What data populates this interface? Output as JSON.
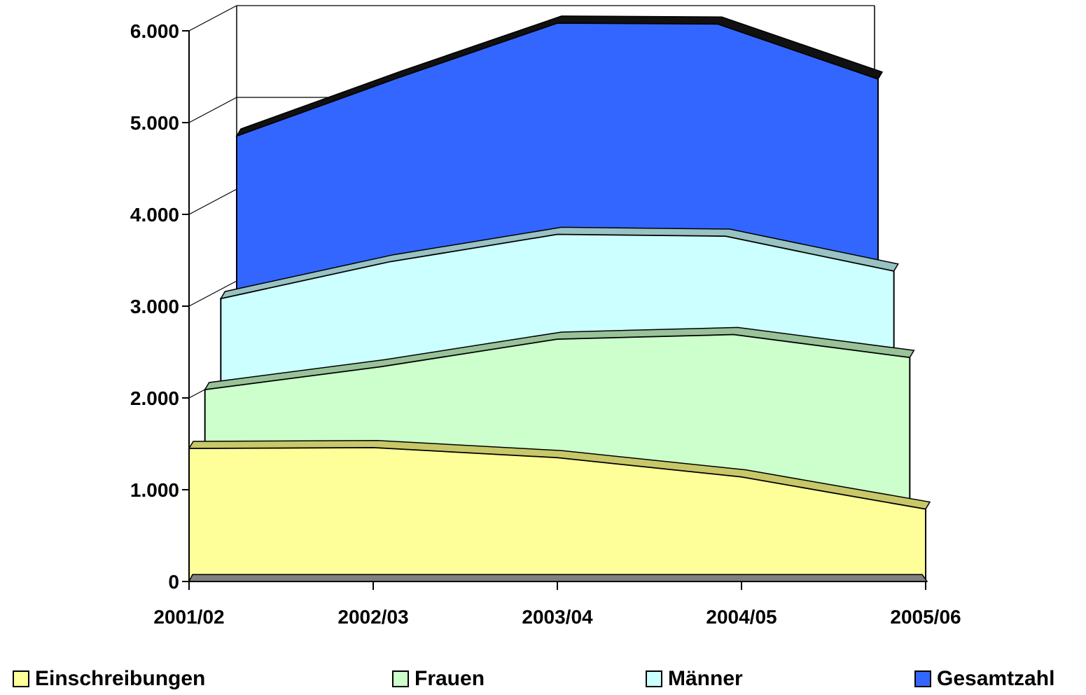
{
  "chart_data": {
    "type": "area",
    "stacked": false,
    "three_d": true,
    "categories": [
      "2001/02",
      "2002/03",
      "2003/04",
      "2004/05",
      "2005/06"
    ],
    "ylim": [
      0,
      6000
    ],
    "yticks": [
      "0",
      "1.000",
      "2.000",
      "3.000",
      "4.000",
      "5.000",
      "6.000"
    ],
    "ytick_values": [
      0,
      1000,
      2000,
      3000,
      4000,
      5000,
      6000
    ],
    "grid": true,
    "legend_position": "bottom",
    "series": [
      {
        "name": "Einschreibungen",
        "values": [
          1450,
          1460,
          1350,
          1140,
          790
        ],
        "color": "#FFFF99",
        "top_color": "#C8C86A"
      },
      {
        "name": "Frauen",
        "values": [
          2000,
          2250,
          2550,
          2600,
          2350
        ],
        "color": "#CCFFCC",
        "top_color": "#99C299"
      },
      {
        "name": "Männer",
        "values": [
          2900,
          3300,
          3600,
          3580,
          3200
        ],
        "color": "#CCFFFF",
        "top_color": "#99C2C2"
      },
      {
        "name": "Gesamtzahl",
        "values": [
          4580,
          5210,
          5810,
          5800,
          5200
        ],
        "color": "#3366FF",
        "top_color": "#111111"
      }
    ]
  }
}
